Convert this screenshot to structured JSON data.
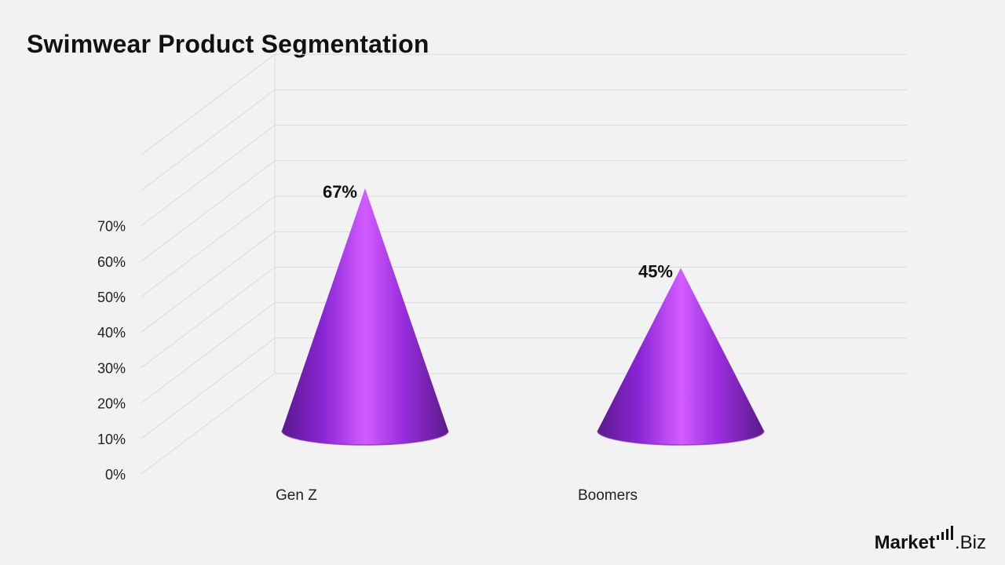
{
  "title": "Swimwear Product Segmentation",
  "logo": {
    "brand": "Market",
    "suffix": ".Biz",
    "icon": "bar-chart-icon"
  },
  "colors": {
    "cone_dark": "#5a1a8c",
    "cone_mid": "#8a25d6",
    "cone_light": "#d25cff",
    "grid": "#d9d9d9"
  },
  "chart_data": {
    "type": "bar",
    "bar_shape": "cone",
    "title": "Swimwear Product Segmentation",
    "xlabel": "",
    "ylabel": "",
    "categories": [
      "Gen Z",
      "Boomers"
    ],
    "values": [
      67,
      45
    ],
    "value_labels": [
      "67%",
      "45%"
    ],
    "y_ticks": [
      0,
      10,
      20,
      30,
      40,
      50,
      60,
      70
    ],
    "y_tick_labels": [
      "0%",
      "10%",
      "20%",
      "30%",
      "40%",
      "50%",
      "60%",
      "70%"
    ],
    "ylim": [
      0,
      90
    ],
    "grid": true,
    "legend": "none"
  }
}
